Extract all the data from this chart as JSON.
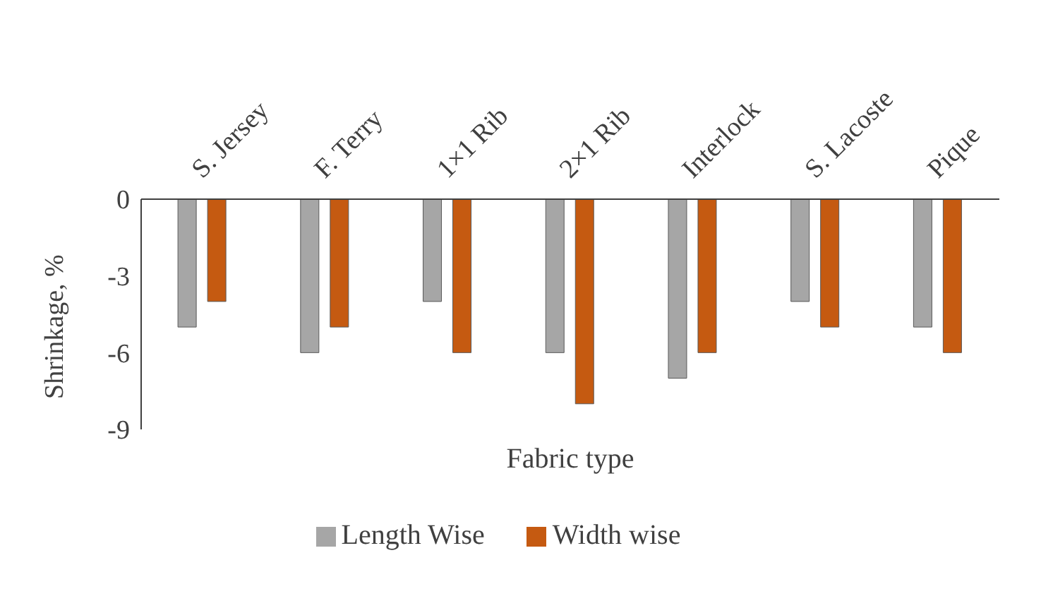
{
  "chart_data": {
    "type": "bar",
    "xlabel": "Fabric type",
    "ylabel": "Shrinkage, %",
    "categories": [
      "S. Jersey",
      "F. Terry",
      "1×1 Rib",
      "2×1 Rib",
      "Interlock",
      "S. Lacoste",
      "Pique"
    ],
    "series": [
      {
        "name": "Length Wise",
        "color": "#a6a6a6",
        "values": [
          -5,
          -6,
          -4,
          -6,
          -7,
          -4,
          -5
        ]
      },
      {
        "name": "Width wise",
        "color": "#c55a11",
        "values": [
          -4,
          -5,
          -6,
          -8,
          -6,
          -5,
          -6
        ]
      }
    ],
    "ylim": [
      -9,
      0
    ],
    "yticks": [
      0,
      -3,
      -6,
      -9
    ],
    "grid": false,
    "legend": "bottom"
  }
}
